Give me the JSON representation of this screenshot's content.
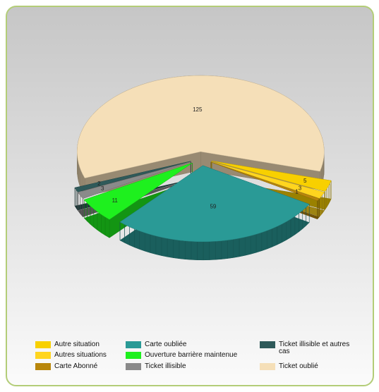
{
  "chart_data": {
    "type": "pie3d",
    "categories": [
      "Autre situation",
      "Autres situations",
      "Carte Abonné",
      "Carte oubliée",
      "Ouverture barrière maintenue",
      "Ticket illisible",
      "Ticket illisible et autres cas",
      "Ticket oublié"
    ],
    "values": [
      5,
      3,
      1,
      59,
      11,
      3,
      2,
      125
    ],
    "colors": [
      "#f8d000",
      "#ffd51f",
      "#b8860b",
      "#2a9a96",
      "#1ef01e",
      "#8a8a8a",
      "#2f5a5a",
      "#f5dfb8"
    ]
  }
}
